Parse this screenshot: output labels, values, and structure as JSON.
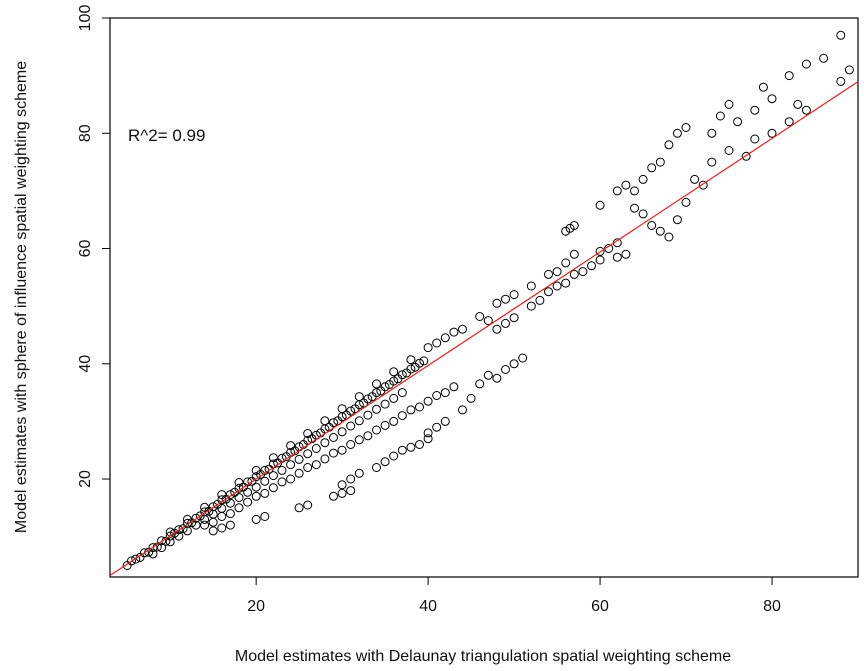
{
  "chart_data": {
    "type": "scatter",
    "xlabel": "Model estimates with Delaunay triangulation spatial weighting scheme",
    "ylabel": "Model estimates with sphere of influence spatial weighting scheme",
    "annotation": "R^2= 0.99",
    "x_ticks": [
      20,
      40,
      60,
      80
    ],
    "y_ticks": [
      20,
      40,
      60,
      80,
      100
    ],
    "xlim": [
      3,
      90
    ],
    "ylim": [
      3,
      100
    ],
    "grid": false,
    "point_color": "#000000",
    "fit_line": {
      "color": "#e8201e",
      "slope": 0.985,
      "intercept": 0.3
    },
    "points": [
      [
        5,
        5
      ],
      [
        5.5,
        5.8
      ],
      [
        6,
        6.1
      ],
      [
        6.5,
        6.4
      ],
      [
        7,
        7.2
      ],
      [
        7.5,
        7.3
      ],
      [
        8,
        8.1
      ],
      [
        8.5,
        8.2
      ],
      [
        9,
        9.3
      ],
      [
        9.5,
        9.2
      ],
      [
        10,
        10.1
      ],
      [
        10.5,
        10.6
      ],
      [
        11,
        11.2
      ],
      [
        11.5,
        11.4
      ],
      [
        12,
        12.3
      ],
      [
        12.5,
        12.4
      ],
      [
        13,
        13.2
      ],
      [
        13.5,
        13.6
      ],
      [
        14,
        14.3
      ],
      [
        14.5,
        14.4
      ],
      [
        15,
        15.2
      ],
      [
        15.5,
        15.6
      ],
      [
        16,
        16.4
      ],
      [
        16.5,
        16.5
      ],
      [
        17,
        17.3
      ],
      [
        17.5,
        17.7
      ],
      [
        18,
        18.4
      ],
      [
        18.5,
        18.6
      ],
      [
        19,
        19.5
      ],
      [
        19.5,
        19.6
      ],
      [
        20,
        20.4
      ],
      [
        20.5,
        20.8
      ],
      [
        21,
        21.5
      ],
      [
        21.5,
        21.7
      ],
      [
        22,
        22.6
      ],
      [
        22.5,
        22.8
      ],
      [
        23,
        23.6
      ],
      [
        23.5,
        23.9
      ],
      [
        24,
        24.6
      ],
      [
        24.5,
        24.9
      ],
      [
        25,
        25.6
      ],
      [
        25.5,
        26
      ],
      [
        26,
        26.7
      ],
      [
        26.5,
        27
      ],
      [
        27,
        27.6
      ],
      [
        27.5,
        28
      ],
      [
        28,
        28.7
      ],
      [
        28.5,
        29
      ],
      [
        29,
        29.8
      ],
      [
        29.5,
        30.1
      ],
      [
        30,
        30.8
      ],
      [
        30.5,
        31.1
      ],
      [
        31,
        31.8
      ],
      [
        31.5,
        32.2
      ],
      [
        32,
        32.9
      ],
      [
        32.5,
        33.2
      ],
      [
        33,
        33.9
      ],
      [
        33.5,
        34.3
      ],
      [
        34,
        35
      ],
      [
        34.5,
        35.3
      ],
      [
        35,
        36
      ],
      [
        35.5,
        36.4
      ],
      [
        36,
        37
      ],
      [
        36.5,
        37.4
      ],
      [
        37,
        38.1
      ],
      [
        37.5,
        38.4
      ],
      [
        38,
        39.1
      ],
      [
        38.5,
        39.4
      ],
      [
        39,
        40.1
      ],
      [
        39.5,
        40.5
      ],
      [
        8,
        7
      ],
      [
        9,
        8.1
      ],
      [
        10,
        9.1
      ],
      [
        11,
        10.1
      ],
      [
        12,
        11
      ],
      [
        13,
        12
      ],
      [
        14,
        13
      ],
      [
        15,
        13.9
      ],
      [
        16,
        14.9
      ],
      [
        17,
        15.8
      ],
      [
        18,
        16.8
      ],
      [
        19,
        17.7
      ],
      [
        20,
        18.6
      ],
      [
        21,
        19.6
      ],
      [
        22,
        20.6
      ],
      [
        23,
        21.5
      ],
      [
        24,
        22.5
      ],
      [
        25,
        23.4
      ],
      [
        26,
        24.4
      ],
      [
        27,
        25.3
      ],
      [
        28,
        26.3
      ],
      [
        29,
        27.2
      ],
      [
        30,
        28.2
      ],
      [
        31,
        29.2
      ],
      [
        32,
        30.1
      ],
      [
        33,
        31.1
      ],
      [
        34,
        32.1
      ],
      [
        35,
        33
      ],
      [
        36,
        34
      ],
      [
        37,
        35
      ],
      [
        10,
        10.8
      ],
      [
        12,
        13
      ],
      [
        14,
        15.1
      ],
      [
        16,
        17.3
      ],
      [
        18,
        19.4
      ],
      [
        20,
        21.5
      ],
      [
        22,
        23.7
      ],
      [
        24,
        25.8
      ],
      [
        26,
        27.9
      ],
      [
        28,
        30.1
      ],
      [
        30,
        32.2
      ],
      [
        32,
        34.3
      ],
      [
        34,
        36.5
      ],
      [
        36,
        38.6
      ],
      [
        38,
        40.7
      ],
      [
        40,
        42.8
      ],
      [
        41,
        43.6
      ],
      [
        42,
        44.5
      ],
      [
        43,
        45.5
      ],
      [
        44,
        46
      ],
      [
        46,
        48.2
      ],
      [
        47,
        47.5
      ],
      [
        48,
        50.5
      ],
      [
        49,
        51.2
      ],
      [
        50,
        52
      ],
      [
        52,
        53.5
      ],
      [
        54,
        55.5
      ],
      [
        55,
        56
      ],
      [
        56,
        57.5
      ],
      [
        57,
        59
      ],
      [
        14,
        12
      ],
      [
        15,
        12.5
      ],
      [
        16,
        13.5
      ],
      [
        17,
        14
      ],
      [
        18,
        15
      ],
      [
        19,
        16
      ],
      [
        20,
        17
      ],
      [
        21,
        17.5
      ],
      [
        22,
        18.5
      ],
      [
        23,
        19.5
      ],
      [
        24,
        20
      ],
      [
        25,
        21
      ],
      [
        26,
        22
      ],
      [
        27,
        22.5
      ],
      [
        28,
        23.5
      ],
      [
        29,
        24.5
      ],
      [
        30,
        25
      ],
      [
        31,
        26
      ],
      [
        32,
        26.8
      ],
      [
        33,
        27.5
      ],
      [
        34,
        28.5
      ],
      [
        35,
        29.3
      ],
      [
        36,
        30
      ],
      [
        37,
        31
      ],
      [
        38,
        32
      ],
      [
        39,
        32.5
      ],
      [
        40,
        33.5
      ],
      [
        41,
        34.5
      ],
      [
        42,
        35
      ],
      [
        43,
        36
      ],
      [
        15,
        11
      ],
      [
        16,
        11.5
      ],
      [
        17,
        12
      ],
      [
        20,
        13
      ],
      [
        21,
        13.5
      ],
      [
        25,
        15
      ],
      [
        26,
        15.5
      ],
      [
        29,
        17
      ],
      [
        30,
        17.5
      ],
      [
        31,
        18
      ],
      [
        30,
        19
      ],
      [
        31,
        20
      ],
      [
        32,
        21
      ],
      [
        34,
        22
      ],
      [
        35,
        23
      ],
      [
        36,
        24
      ],
      [
        37,
        25
      ],
      [
        38,
        25.5
      ],
      [
        39,
        26
      ],
      [
        40,
        27
      ],
      [
        40,
        28
      ],
      [
        41,
        29
      ],
      [
        42,
        30
      ],
      [
        44,
        32
      ],
      [
        45,
        34
      ],
      [
        46,
        36.5
      ],
      [
        47,
        38
      ],
      [
        48,
        37.5
      ],
      [
        49,
        39
      ],
      [
        50,
        40
      ],
      [
        51,
        41
      ],
      [
        48,
        46
      ],
      [
        49,
        47
      ],
      [
        50,
        48
      ],
      [
        52,
        50
      ],
      [
        53,
        51
      ],
      [
        54,
        52.5
      ],
      [
        55,
        53.5
      ],
      [
        56,
        54
      ],
      [
        57,
        55.5
      ],
      [
        58,
        56
      ],
      [
        56,
        63
      ],
      [
        56.5,
        63.5
      ],
      [
        57,
        64
      ],
      [
        59,
        57
      ],
      [
        60,
        58
      ],
      [
        60,
        59.5
      ],
      [
        61,
        60
      ],
      [
        62,
        61
      ],
      [
        62,
        58.5
      ],
      [
        63,
        59
      ],
      [
        60,
        67.5
      ],
      [
        62,
        70
      ],
      [
        63,
        71
      ],
      [
        64,
        70
      ],
      [
        65,
        72
      ],
      [
        66,
        74
      ],
      [
        67,
        75
      ],
      [
        68,
        78
      ],
      [
        69,
        80
      ],
      [
        70,
        81
      ],
      [
        64,
        67
      ],
      [
        65,
        66
      ],
      [
        66,
        64
      ],
      [
        67,
        63
      ],
      [
        68,
        62
      ],
      [
        69,
        65
      ],
      [
        70,
        68
      ],
      [
        71,
        72
      ],
      [
        72,
        71
      ],
      [
        73,
        75
      ],
      [
        73,
        80
      ],
      [
        74,
        83
      ],
      [
        75,
        85
      ],
      [
        76,
        82
      ],
      [
        78,
        84
      ],
      [
        79,
        88
      ],
      [
        80,
        86
      ],
      [
        82,
        90
      ],
      [
        83,
        85
      ],
      [
        84,
        92
      ],
      [
        86,
        93
      ],
      [
        88,
        89
      ],
      [
        88,
        97
      ],
      [
        89,
        91
      ],
      [
        80,
        80
      ],
      [
        82,
        82
      ],
      [
        84,
        84
      ],
      [
        77,
        76
      ],
      [
        75,
        77
      ],
      [
        78,
        79
      ]
    ]
  }
}
